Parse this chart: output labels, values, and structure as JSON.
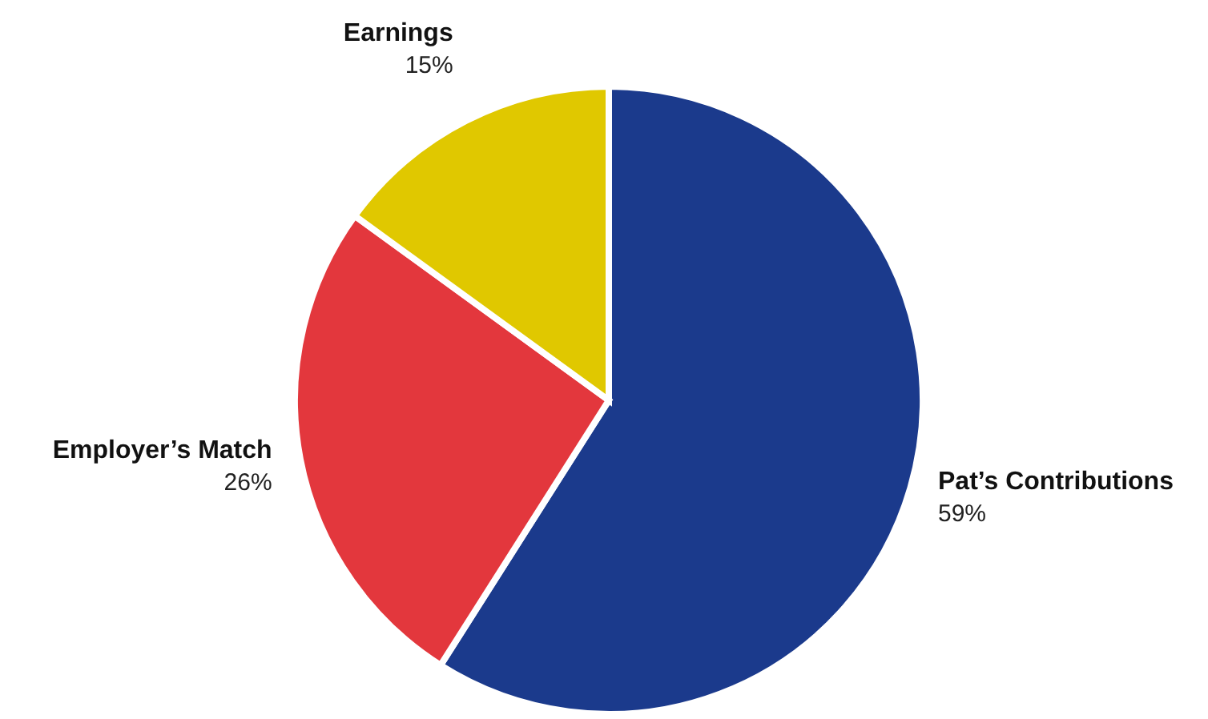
{
  "chart_data": {
    "type": "pie",
    "categories": [
      "Pat’s Contributions",
      "Employer’s Match",
      "Earnings"
    ],
    "values": [
      59,
      26,
      15
    ],
    "colors": [
      "#1b3a8c",
      "#e3373d",
      "#e0c800"
    ],
    "value_labels": [
      "59%",
      "26%",
      "15%"
    ]
  }
}
